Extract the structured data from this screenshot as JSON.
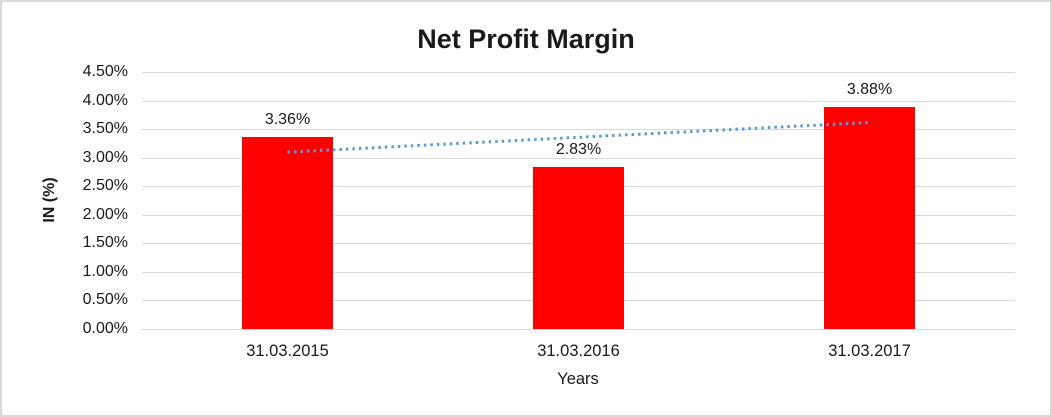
{
  "chart_data": {
    "type": "bar",
    "title": "Net Profit Margin",
    "categories": [
      "31.03.2015",
      "31.03.2016",
      "31.03.2017"
    ],
    "values": [
      3.36,
      2.83,
      3.88
    ],
    "data_labels": [
      "3.36%",
      "2.83%",
      "3.88%"
    ],
    "xlabel": "Years",
    "ylabel": "IN (%)",
    "ylim": [
      0,
      4.5
    ],
    "ytick_step": 0.5,
    "yticks": [
      "4.50%",
      "4.00%",
      "3.50%",
      "3.00%",
      "2.50%",
      "2.00%",
      "1.50%",
      "1.00%",
      "0.50%",
      "0.00%"
    ],
    "grid": true,
    "legend": "none",
    "bar_color": "#ff0000",
    "gridline_color": "#d9d9d9",
    "frame_border_color": "#d9d9d9",
    "text_color": "#1a1a1a",
    "trendline": {
      "type": "linear",
      "style": "dotted",
      "color": "#5b9bd5",
      "fitted_values": [
        3.1,
        3.36,
        3.62
      ]
    }
  }
}
